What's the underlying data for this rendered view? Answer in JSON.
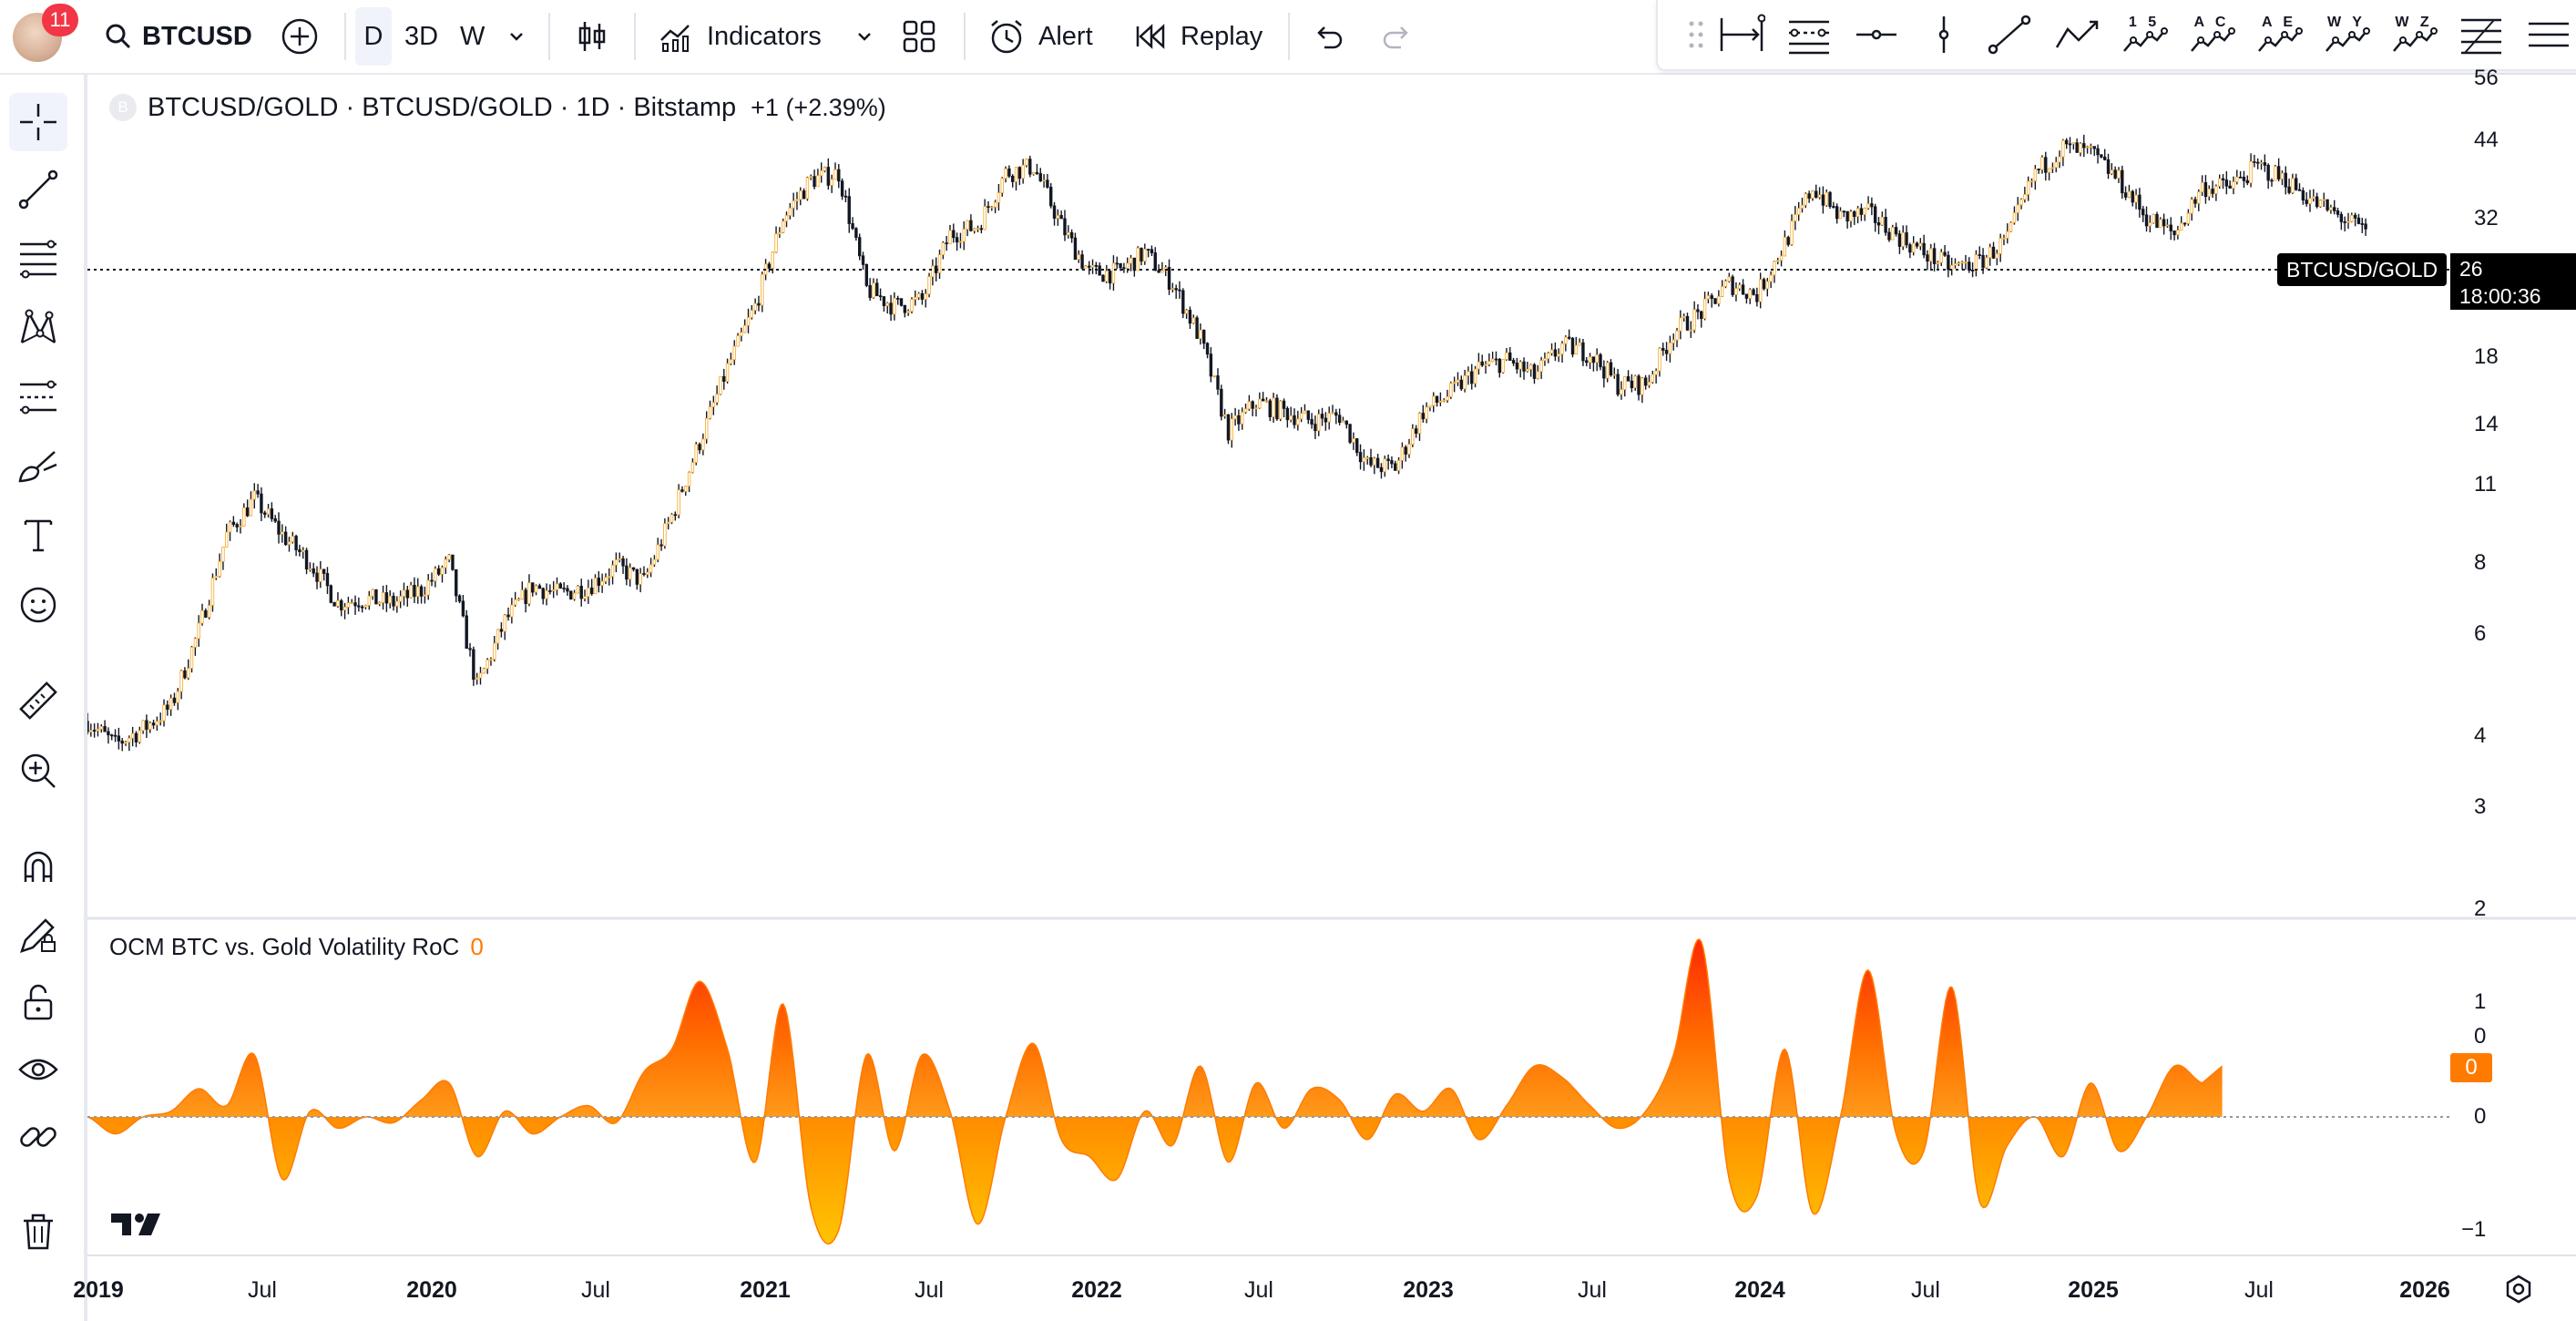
{
  "header": {
    "notification_count": "11",
    "symbol": "BTCUSD",
    "intervals": [
      "D",
      "3D",
      "W"
    ],
    "active_interval": "D",
    "indicators_label": "Indicators",
    "alert_label": "Alert",
    "replay_label": "Replay"
  },
  "drawing_toolbar": {
    "pattern_labels": [
      "1 5",
      "A C",
      "A E",
      "W Y",
      "W Z"
    ]
  },
  "left_toolbar": {
    "tools": [
      "crosshair",
      "trend-line",
      "fib-lines",
      "xabcd-pattern",
      "long-position",
      "brush",
      "text",
      "emoji",
      "ruler",
      "zoom-in",
      "magnet",
      "lock-drawings",
      "lock",
      "eye",
      "link",
      "trash"
    ]
  },
  "legend": {
    "title": "BTCUSD/GOLD · BTCUSD/GOLD · 1D · Bitstamp",
    "change": "+1 (+2.39%)",
    "exchange_logo": "B"
  },
  "indicator": {
    "name": "OCM BTC vs. Gold Volatility RoC",
    "value": "0"
  },
  "price_scale": {
    "labels": [
      "56",
      "44",
      "32",
      "26",
      "18",
      "14",
      "11",
      "8",
      "6",
      "4",
      "3",
      "2"
    ],
    "type": "log"
  },
  "last_price": {
    "symbol_label": "BTCUSD/GOLD",
    "value": "26",
    "countdown": "18:00:36"
  },
  "indicator_scale": {
    "labels": [
      "1",
      "0",
      "0",
      "−1"
    ],
    "value_tag": "0"
  },
  "time_axis": {
    "labels": [
      "2019",
      "Jul",
      "2020",
      "Jul",
      "2021",
      "Jul",
      "2022",
      "Jul",
      "2023",
      "Jul",
      "2024",
      "Jul",
      "2025",
      "Jul",
      "2026"
    ],
    "year_labels": [
      "2019",
      "2020",
      "2021",
      "2022",
      "2023",
      "2024",
      "2025",
      "2026"
    ]
  },
  "chart_data": {
    "type": "candlestick",
    "scale": "log",
    "timeframe": "1D",
    "x_range": [
      "2019-01",
      "2026-01"
    ],
    "y_range": [
      2,
      56
    ],
    "price_points": [
      {
        "x": "2019-01",
        "y": 3.1
      },
      {
        "x": "2019-02",
        "y": 2.8
      },
      {
        "x": "2019-03",
        "y": 3.0
      },
      {
        "x": "2019-04",
        "y": 3.3
      },
      {
        "x": "2019-05",
        "y": 4.6
      },
      {
        "x": "2019-06",
        "y": 7.0
      },
      {
        "x": "2019-07",
        "y": 8.2
      },
      {
        "x": "2019-08",
        "y": 7.0
      },
      {
        "x": "2019-09",
        "y": 6.2
      },
      {
        "x": "2019-10",
        "y": 5.2
      },
      {
        "x": "2019-11",
        "y": 5.3
      },
      {
        "x": "2019-12",
        "y": 5.2
      },
      {
        "x": "2020-01",
        "y": 5.5
      },
      {
        "x": "2020-02",
        "y": 6.2
      },
      {
        "x": "2020-03",
        "y": 3.6
      },
      {
        "x": "2020-04",
        "y": 4.8
      },
      {
        "x": "2020-05",
        "y": 5.6
      },
      {
        "x": "2020-06",
        "y": 5.4
      },
      {
        "x": "2020-07",
        "y": 5.6
      },
      {
        "x": "2020-08",
        "y": 6.1
      },
      {
        "x": "2020-09",
        "y": 5.7
      },
      {
        "x": "2020-10",
        "y": 7.6
      },
      {
        "x": "2020-11",
        "y": 10.5
      },
      {
        "x": "2020-12",
        "y": 14.5
      },
      {
        "x": "2021-01",
        "y": 19.0
      },
      {
        "x": "2021-02",
        "y": 28.0
      },
      {
        "x": "2021-03",
        "y": 33.0
      },
      {
        "x": "2021-04",
        "y": 34.0
      },
      {
        "x": "2021-05",
        "y": 20.5
      },
      {
        "x": "2021-06",
        "y": 19.0
      },
      {
        "x": "2021-07",
        "y": 19.5
      },
      {
        "x": "2021-08",
        "y": 26.0
      },
      {
        "x": "2021-09",
        "y": 27.0
      },
      {
        "x": "2021-10",
        "y": 34.0
      },
      {
        "x": "2021-11",
        "y": 35.0
      },
      {
        "x": "2021-12",
        "y": 27.0
      },
      {
        "x": "2022-01",
        "y": 22.0
      },
      {
        "x": "2022-02",
        "y": 22.0
      },
      {
        "x": "2022-03",
        "y": 24.0
      },
      {
        "x": "2022-04",
        "y": 21.0
      },
      {
        "x": "2022-05",
        "y": 16.5
      },
      {
        "x": "2022-06",
        "y": 11.0
      },
      {
        "x": "2022-07",
        "y": 12.5
      },
      {
        "x": "2022-08",
        "y": 12.0
      },
      {
        "x": "2022-09",
        "y": 11.5
      },
      {
        "x": "2022-10",
        "y": 11.8
      },
      {
        "x": "2022-11",
        "y": 9.5
      },
      {
        "x": "2022-12",
        "y": 9.4
      },
      {
        "x": "2023-01",
        "y": 12.0
      },
      {
        "x": "2023-02",
        "y": 13.0
      },
      {
        "x": "2023-03",
        "y": 14.5
      },
      {
        "x": "2023-04",
        "y": 15.0
      },
      {
        "x": "2023-05",
        "y": 14.0
      },
      {
        "x": "2023-06",
        "y": 16.0
      },
      {
        "x": "2023-07",
        "y": 15.5
      },
      {
        "x": "2023-08",
        "y": 13.5
      },
      {
        "x": "2023-09",
        "y": 13.5
      },
      {
        "x": "2023-10",
        "y": 17.0
      },
      {
        "x": "2023-11",
        "y": 18.5
      },
      {
        "x": "2023-12",
        "y": 21.0
      },
      {
        "x": "2024-01",
        "y": 20.0
      },
      {
        "x": "2024-02",
        "y": 25.0
      },
      {
        "x": "2024-03",
        "y": 32.0
      },
      {
        "x": "2024-04",
        "y": 28.0
      },
      {
        "x": "2024-05",
        "y": 28.5
      },
      {
        "x": "2024-06",
        "y": 26.0
      },
      {
        "x": "2024-07",
        "y": 24.0
      },
      {
        "x": "2024-08",
        "y": 22.5
      },
      {
        "x": "2024-09",
        "y": 23.0
      },
      {
        "x": "2024-10",
        "y": 25.5
      },
      {
        "x": "2024-11",
        "y": 34.0
      },
      {
        "x": "2024-12",
        "y": 38.0
      },
      {
        "x": "2025-01",
        "y": 37.0
      },
      {
        "x": "2025-02",
        "y": 33.0
      },
      {
        "x": "2025-03",
        "y": 28.0
      },
      {
        "x": "2025-04",
        "y": 26.0
      },
      {
        "x": "2025-05",
        "y": 32.0
      },
      {
        "x": "2025-06",
        "y": 32.0
      },
      {
        "x": "2025-07",
        "y": 35.0
      },
      {
        "x": "2025-08",
        "y": 33.0
      },
      {
        "x": "2025-09",
        "y": 30.0
      },
      {
        "x": "2025-10",
        "y": 28.0
      },
      {
        "x": "2025-11",
        "y": 26.0
      }
    ],
    "last_value": 26,
    "indicator": {
      "name": "OCM BTC vs. Gold Volatility RoC",
      "type": "area",
      "y_range": [
        -1,
        1.5
      ],
      "points": [
        {
          "x": "2019-01",
          "y": 0.0
        },
        {
          "x": "2019-02",
          "y": -0.15
        },
        {
          "x": "2019-03",
          "y": 0.0
        },
        {
          "x": "2019-04",
          "y": 0.05
        },
        {
          "x": "2019-05",
          "y": 0.25
        },
        {
          "x": "2019-06",
          "y": 0.1
        },
        {
          "x": "2019-07",
          "y": 0.55
        },
        {
          "x": "2019-08",
          "y": -0.55
        },
        {
          "x": "2019-09",
          "y": 0.05
        },
        {
          "x": "2019-10",
          "y": -0.1
        },
        {
          "x": "2019-11",
          "y": 0.0
        },
        {
          "x": "2019-12",
          "y": -0.05
        },
        {
          "x": "2020-01",
          "y": 0.15
        },
        {
          "x": "2020-02",
          "y": 0.3
        },
        {
          "x": "2020-03",
          "y": -0.35
        },
        {
          "x": "2020-04",
          "y": 0.05
        },
        {
          "x": "2020-05",
          "y": -0.15
        },
        {
          "x": "2020-06",
          "y": 0.0
        },
        {
          "x": "2020-07",
          "y": 0.1
        },
        {
          "x": "2020-08",
          "y": -0.05
        },
        {
          "x": "2020-09",
          "y": 0.4
        },
        {
          "x": "2020-10",
          "y": 0.6
        },
        {
          "x": "2020-11",
          "y": 1.2
        },
        {
          "x": "2020-12",
          "y": 0.6
        },
        {
          "x": "2021-01",
          "y": -0.4
        },
        {
          "x": "2021-02",
          "y": 1.0
        },
        {
          "x": "2021-03",
          "y": -0.8
        },
        {
          "x": "2021-04",
          "y": -1.0
        },
        {
          "x": "2021-05",
          "y": 0.55
        },
        {
          "x": "2021-06",
          "y": -0.3
        },
        {
          "x": "2021-07",
          "y": 0.55
        },
        {
          "x": "2021-08",
          "y": 0.05
        },
        {
          "x": "2021-09",
          "y": -0.95
        },
        {
          "x": "2021-10",
          "y": 0.0
        },
        {
          "x": "2021-11",
          "y": 0.65
        },
        {
          "x": "2021-12",
          "y": -0.2
        },
        {
          "x": "2022-01",
          "y": -0.35
        },
        {
          "x": "2022-02",
          "y": -0.55
        },
        {
          "x": "2022-03",
          "y": 0.05
        },
        {
          "x": "2022-04",
          "y": -0.25
        },
        {
          "x": "2022-05",
          "y": 0.45
        },
        {
          "x": "2022-06",
          "y": -0.4
        },
        {
          "x": "2022-07",
          "y": 0.3
        },
        {
          "x": "2022-08",
          "y": -0.1
        },
        {
          "x": "2022-09",
          "y": 0.25
        },
        {
          "x": "2022-10",
          "y": 0.15
        },
        {
          "x": "2022-11",
          "y": -0.2
        },
        {
          "x": "2022-12",
          "y": 0.2
        },
        {
          "x": "2023-01",
          "y": 0.05
        },
        {
          "x": "2023-02",
          "y": 0.25
        },
        {
          "x": "2023-03",
          "y": -0.2
        },
        {
          "x": "2023-04",
          "y": 0.1
        },
        {
          "x": "2023-05",
          "y": 0.45
        },
        {
          "x": "2023-06",
          "y": 0.35
        },
        {
          "x": "2023-07",
          "y": 0.1
        },
        {
          "x": "2023-08",
          "y": -0.1
        },
        {
          "x": "2023-09",
          "y": 0.05
        },
        {
          "x": "2023-10",
          "y": 0.55
        },
        {
          "x": "2023-11",
          "y": 1.55
        },
        {
          "x": "2023-12",
          "y": -0.55
        },
        {
          "x": "2024-01",
          "y": -0.7
        },
        {
          "x": "2024-02",
          "y": 0.6
        },
        {
          "x": "2024-03",
          "y": -0.85
        },
        {
          "x": "2024-04",
          "y": 0.0
        },
        {
          "x": "2024-05",
          "y": 1.3
        },
        {
          "x": "2024-06",
          "y": -0.15
        },
        {
          "x": "2024-07",
          "y": -0.3
        },
        {
          "x": "2024-08",
          "y": 1.15
        },
        {
          "x": "2024-09",
          "y": -0.75
        },
        {
          "x": "2024-10",
          "y": -0.25
        },
        {
          "x": "2024-11",
          "y": 0.0
        },
        {
          "x": "2024-12",
          "y": -0.35
        },
        {
          "x": "2025-01",
          "y": 0.3
        },
        {
          "x": "2025-02",
          "y": -0.3
        },
        {
          "x": "2025-03",
          "y": 0.0
        },
        {
          "x": "2025-04",
          "y": 0.45
        },
        {
          "x": "2025-05",
          "y": 0.3
        }
      ]
    }
  }
}
